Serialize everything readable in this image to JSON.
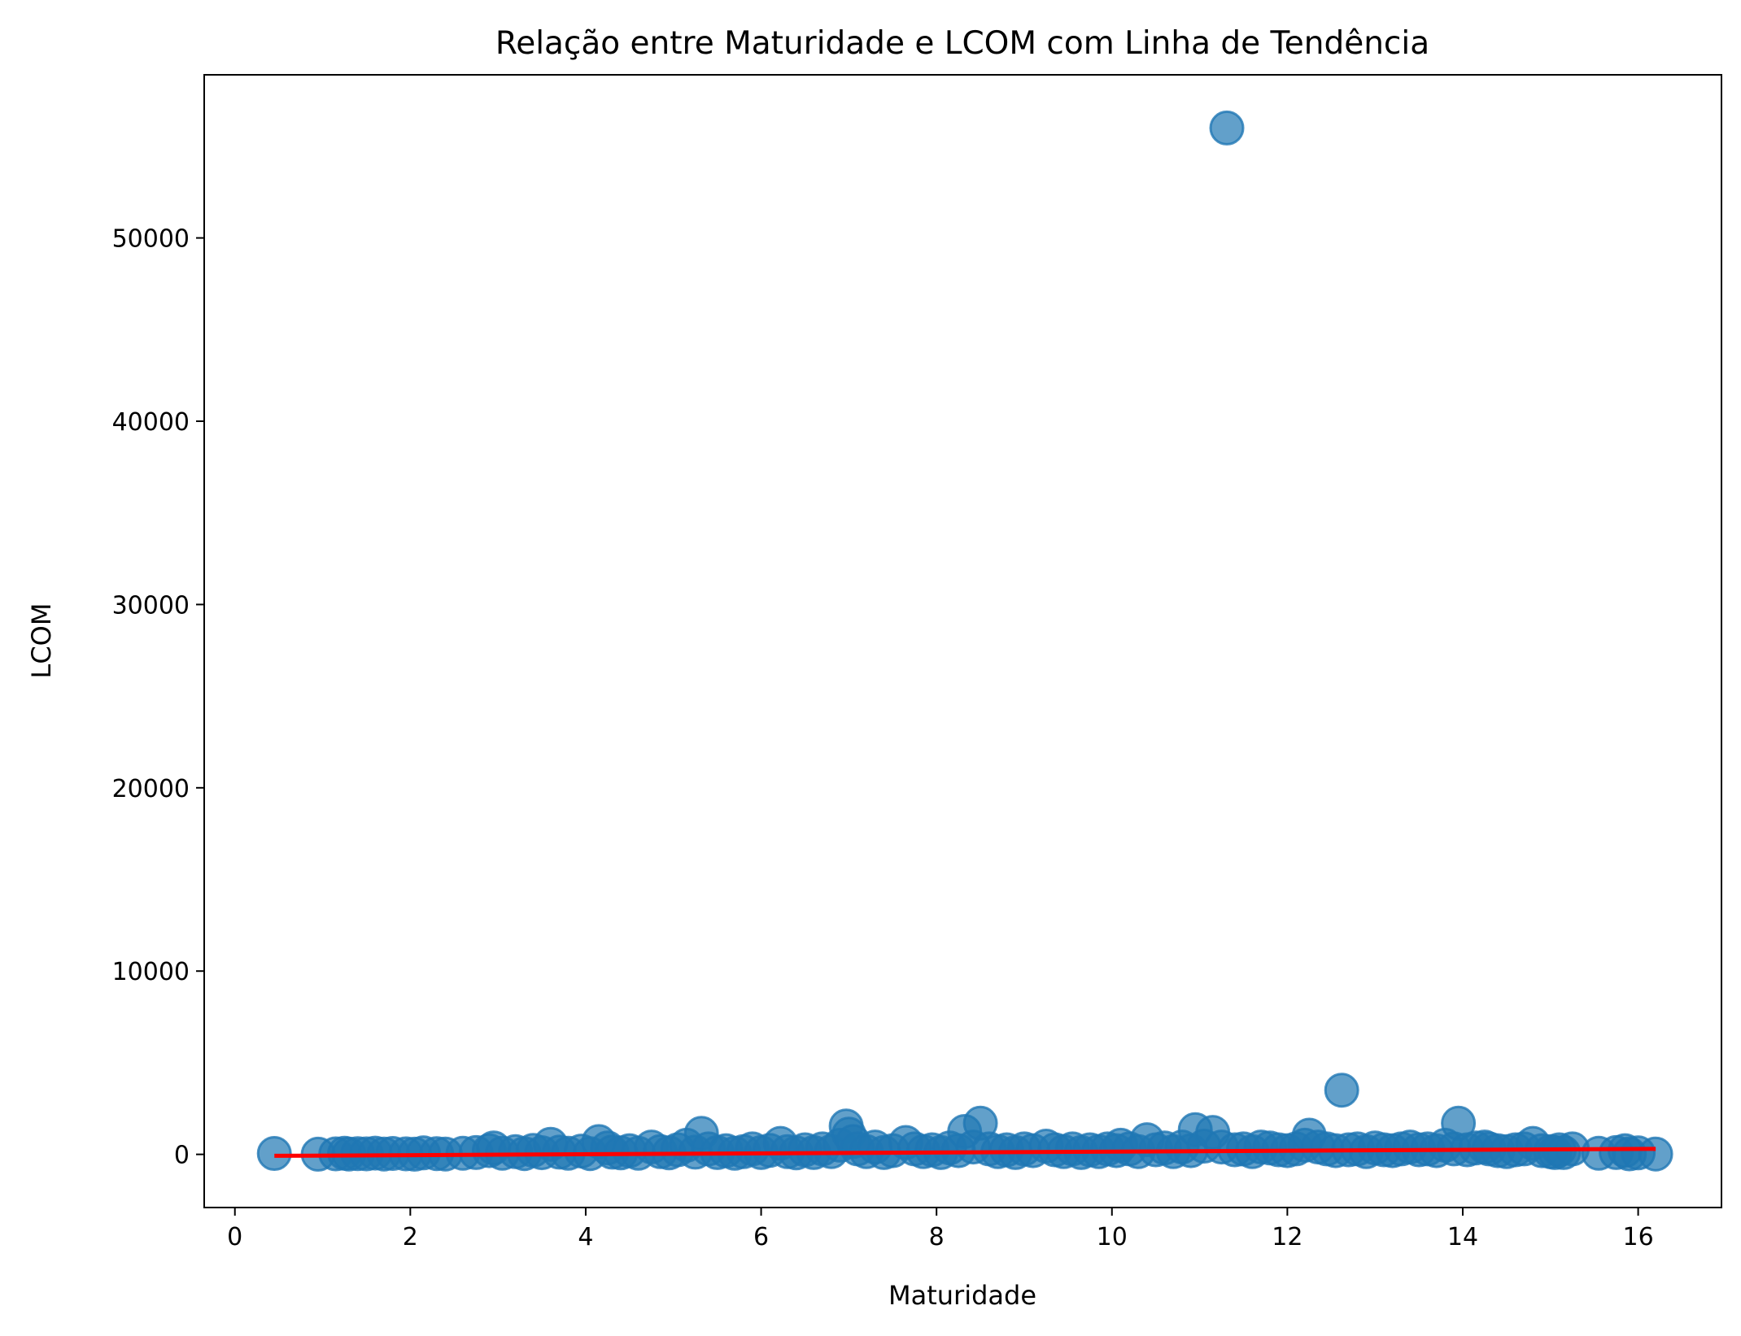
{
  "chart_data": {
    "type": "scatter",
    "title": "Relação entre Maturidade e LCOM com Linha de Tendência",
    "xlabel": "Maturidade",
    "ylabel": "LCOM",
    "xlim": [
      -0.35,
      16.95
    ],
    "ylim": [
      -2900,
      58900
    ],
    "x_ticks": [
      0,
      2,
      4,
      6,
      8,
      10,
      12,
      14,
      16
    ],
    "x_tick_labels": [
      "0",
      "2",
      "4",
      "6",
      "8",
      "10",
      "12",
      "14",
      "16"
    ],
    "y_ticks": [
      0,
      10000,
      20000,
      30000,
      40000,
      50000
    ],
    "y_tick_labels": [
      "0",
      "10000",
      "20000",
      "30000",
      "40000",
      "50000"
    ],
    "grid": false,
    "legend": "none",
    "colors": {
      "points": "#1f77b4",
      "trend_line": "#ff0000"
    },
    "trend_line": {
      "x": [
        0.45,
        16.2
      ],
      "y": [
        -80,
        300
      ]
    },
    "points": [
      [
        0.45,
        50
      ],
      [
        0.95,
        10
      ],
      [
        1.15,
        30
      ],
      [
        1.25,
        60
      ],
      [
        1.3,
        20
      ],
      [
        1.4,
        40
      ],
      [
        1.5,
        30
      ],
      [
        1.6,
        70
      ],
      [
        1.7,
        20
      ],
      [
        1.8,
        50
      ],
      [
        1.95,
        30
      ],
      [
        2.05,
        10
      ],
      [
        2.15,
        80
      ],
      [
        2.3,
        40
      ],
      [
        2.4,
        20
      ],
      [
        2.6,
        60
      ],
      [
        2.75,
        100
      ],
      [
        2.9,
        200
      ],
      [
        2.95,
        350
      ],
      [
        3.05,
        60
      ],
      [
        3.2,
        150
      ],
      [
        3.3,
        40
      ],
      [
        3.4,
        220
      ],
      [
        3.5,
        90
      ],
      [
        3.6,
        550
      ],
      [
        3.7,
        120
      ],
      [
        3.8,
        60
      ],
      [
        3.95,
        180
      ],
      [
        4.05,
        40
      ],
      [
        4.15,
        700
      ],
      [
        4.25,
        350
      ],
      [
        4.3,
        120
      ],
      [
        4.4,
        80
      ],
      [
        4.5,
        200
      ],
      [
        4.6,
        60
      ],
      [
        4.75,
        400
      ],
      [
        4.85,
        150
      ],
      [
        4.95,
        80
      ],
      [
        5.05,
        250
      ],
      [
        5.15,
        500
      ],
      [
        5.25,
        120
      ],
      [
        5.32,
        1150
      ],
      [
        5.4,
        300
      ],
      [
        5.5,
        100
      ],
      [
        5.6,
        200
      ],
      [
        5.7,
        60
      ],
      [
        5.8,
        150
      ],
      [
        5.9,
        300
      ],
      [
        6.0,
        100
      ],
      [
        6.1,
        220
      ],
      [
        6.22,
        600
      ],
      [
        6.3,
        150
      ],
      [
        6.4,
        80
      ],
      [
        6.5,
        250
      ],
      [
        6.6,
        100
      ],
      [
        6.7,
        300
      ],
      [
        6.8,
        150
      ],
      [
        6.9,
        500
      ],
      [
        6.97,
        1550
      ],
      [
        7.0,
        1100
      ],
      [
        7.05,
        700
      ],
      [
        7.1,
        300
      ],
      [
        7.2,
        150
      ],
      [
        7.3,
        400
      ],
      [
        7.4,
        100
      ],
      [
        7.5,
        200
      ],
      [
        7.65,
        650
      ],
      [
        7.75,
        300
      ],
      [
        7.85,
        150
      ],
      [
        7.95,
        250
      ],
      [
        8.05,
        100
      ],
      [
        8.15,
        350
      ],
      [
        8.25,
        200
      ],
      [
        8.32,
        1250
      ],
      [
        8.42,
        400
      ],
      [
        8.5,
        1700
      ],
      [
        8.6,
        300
      ],
      [
        8.7,
        150
      ],
      [
        8.8,
        250
      ],
      [
        8.9,
        100
      ],
      [
        9.0,
        300
      ],
      [
        9.1,
        200
      ],
      [
        9.25,
        450
      ],
      [
        9.35,
        250
      ],
      [
        9.45,
        150
      ],
      [
        9.55,
        300
      ],
      [
        9.65,
        100
      ],
      [
        9.75,
        250
      ],
      [
        9.85,
        150
      ],
      [
        9.95,
        300
      ],
      [
        10.05,
        200
      ],
      [
        10.1,
        500
      ],
      [
        10.2,
        300
      ],
      [
        10.3,
        150
      ],
      [
        10.4,
        800
      ],
      [
        10.5,
        250
      ],
      [
        10.6,
        350
      ],
      [
        10.7,
        150
      ],
      [
        10.8,
        400
      ],
      [
        10.9,
        200
      ],
      [
        10.95,
        1350
      ],
      [
        11.05,
        450
      ],
      [
        11.15,
        1200
      ],
      [
        11.25,
        400
      ],
      [
        11.31,
        56000
      ],
      [
        11.4,
        250
      ],
      [
        11.5,
        300
      ],
      [
        11.6,
        150
      ],
      [
        11.7,
        400
      ],
      [
        11.8,
        350
      ],
      [
        11.9,
        250
      ],
      [
        12.0,
        200
      ],
      [
        12.1,
        300
      ],
      [
        12.2,
        500
      ],
      [
        12.25,
        1050
      ],
      [
        12.35,
        400
      ],
      [
        12.45,
        300
      ],
      [
        12.55,
        200
      ],
      [
        12.62,
        3500
      ],
      [
        12.7,
        250
      ],
      [
        12.8,
        300
      ],
      [
        12.9,
        150
      ],
      [
        13.0,
        350
      ],
      [
        13.1,
        250
      ],
      [
        13.2,
        200
      ],
      [
        13.3,
        300
      ],
      [
        13.4,
        400
      ],
      [
        13.5,
        250
      ],
      [
        13.6,
        300
      ],
      [
        13.7,
        200
      ],
      [
        13.8,
        500
      ],
      [
        13.9,
        300
      ],
      [
        13.95,
        1700
      ],
      [
        14.05,
        250
      ],
      [
        14.15,
        350
      ],
      [
        14.25,
        400
      ],
      [
        14.3,
        300
      ],
      [
        14.4,
        200
      ],
      [
        14.5,
        150
      ],
      [
        14.6,
        250
      ],
      [
        14.7,
        300
      ],
      [
        14.8,
        600
      ],
      [
        14.9,
        200
      ],
      [
        15.0,
        150
      ],
      [
        15.05,
        100
      ],
      [
        15.1,
        250
      ],
      [
        15.15,
        100
      ],
      [
        15.25,
        300
      ],
      [
        15.55,
        60
      ],
      [
        15.75,
        100
      ],
      [
        15.85,
        200
      ],
      [
        15.9,
        30
      ],
      [
        16.0,
        80
      ],
      [
        16.2,
        20
      ]
    ]
  }
}
